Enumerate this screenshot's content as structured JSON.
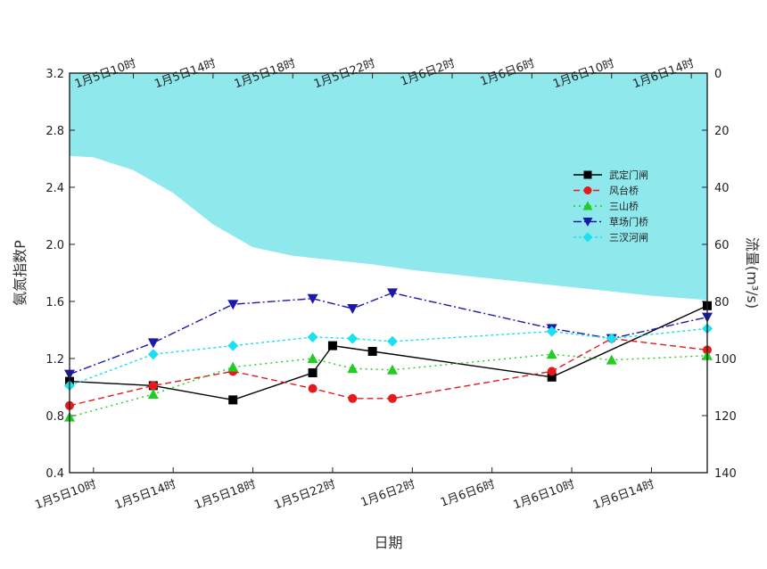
{
  "chart_data": {
    "type": "line",
    "xlabel": "日期",
    "ylabel_left": "氨氮指数P",
    "ylabel_right": "流量(m³/s)",
    "ylim_left": [
      0.4,
      3.2
    ],
    "yticks_left": [
      "0.4",
      "0.8",
      "1.2",
      "1.6",
      "2.0",
      "2.4",
      "2.8",
      "3.2"
    ],
    "ylim_right": [
      0,
      140
    ],
    "yticks_right": [
      "0",
      "20",
      "40",
      "60",
      "80",
      "100",
      "120",
      "140"
    ],
    "xlim_hours": [
      8.8,
      40.8
    ],
    "x_hours_axis_note": "hours from 0:00 on Jan 5",
    "xticks_bottom": [
      {
        "hour": 10,
        "label": "1月5日10时"
      },
      {
        "hour": 14,
        "label": "1月5日14时"
      },
      {
        "hour": 18,
        "label": "1月5日18时"
      },
      {
        "hour": 22,
        "label": "1月5日22时"
      },
      {
        "hour": 26,
        "label": "1月6日2时"
      },
      {
        "hour": 30,
        "label": "1月6日6时"
      },
      {
        "hour": 34,
        "label": "1月6日10时"
      },
      {
        "hour": 38,
        "label": "1月6日14时"
      }
    ],
    "xticks_top": [
      {
        "hour": 12,
        "label": "1月5日10时"
      },
      {
        "hour": 16,
        "label": "1月5日14时"
      },
      {
        "hour": 20,
        "label": "1月5日18时"
      },
      {
        "hour": 24,
        "label": "1月5日22时"
      },
      {
        "hour": 28,
        "label": "1月6日2时"
      },
      {
        "hour": 32,
        "label": "1月6日6时"
      },
      {
        "hour": 36,
        "label": "1月6日10时"
      },
      {
        "hour": 40,
        "label": "1月6日14时"
      }
    ],
    "flow": {
      "color": "#8ee8ec",
      "values": [
        {
          "hour": 8.8,
          "value": 29
        },
        {
          "hour": 10,
          "value": 29.5
        },
        {
          "hour": 12,
          "value": 34
        },
        {
          "hour": 14,
          "value": 42
        },
        {
          "hour": 16,
          "value": 53
        },
        {
          "hour": 18,
          "value": 61
        },
        {
          "hour": 20,
          "value": 64
        },
        {
          "hour": 22,
          "value": 65.5
        },
        {
          "hour": 24,
          "value": 67
        },
        {
          "hour": 26,
          "value": 69
        },
        {
          "hour": 28,
          "value": 70.5
        },
        {
          "hour": 30,
          "value": 72
        },
        {
          "hour": 32,
          "value": 73.5
        },
        {
          "hour": 34,
          "value": 75
        },
        {
          "hour": 36,
          "value": 76.5
        },
        {
          "hour": 38,
          "value": 78
        },
        {
          "hour": 40.8,
          "value": 79.5
        }
      ]
    },
    "legend_position": "right",
    "series": [
      {
        "name": "武定门闸",
        "color": "#000000",
        "marker": "square",
        "dash": "",
        "points": [
          [
            8.8,
            1.04
          ],
          [
            13,
            1.01
          ],
          [
            17,
            0.91
          ],
          [
            21,
            1.1
          ],
          [
            22,
            1.29
          ],
          [
            24,
            1.25
          ],
          [
            33,
            1.07
          ],
          [
            40.8,
            1.57
          ]
        ]
      },
      {
        "name": "风台桥",
        "color": "#e41a1c",
        "marker": "circle",
        "dash": "7,4",
        "points": [
          [
            8.8,
            0.87
          ],
          [
            13,
            1.01
          ],
          [
            17,
            1.11
          ],
          [
            21,
            0.99
          ],
          [
            23,
            0.92
          ],
          [
            25,
            0.92
          ],
          [
            33,
            1.11
          ],
          [
            36,
            1.34
          ],
          [
            40.8,
            1.26
          ]
        ]
      },
      {
        "name": "三山桥",
        "color": "#22cc22",
        "marker": "triangle-up",
        "dash": "2,4",
        "points": [
          [
            8.8,
            0.79
          ],
          [
            13,
            0.95
          ],
          [
            17,
            1.14
          ],
          [
            21,
            1.2
          ],
          [
            23,
            1.13
          ],
          [
            25,
            1.12
          ],
          [
            33,
            1.23
          ],
          [
            36,
            1.19
          ],
          [
            40.8,
            1.22
          ]
        ]
      },
      {
        "name": "草场门桥",
        "color": "#1a1aaa",
        "marker": "triangle-down",
        "dash": "9,3,2,3",
        "points": [
          [
            8.8,
            1.09
          ],
          [
            13,
            1.31
          ],
          [
            17,
            1.58
          ],
          [
            21,
            1.62
          ],
          [
            23,
            1.55
          ],
          [
            25,
            1.66
          ],
          [
            33,
            1.41
          ],
          [
            36,
            1.34
          ],
          [
            40.8,
            1.49
          ]
        ]
      },
      {
        "name": "三汊河闸",
        "color": "#1ae0f0",
        "marker": "diamond",
        "dash": "3,3",
        "points": [
          [
            8.8,
            1.01
          ],
          [
            13,
            1.23
          ],
          [
            17,
            1.29
          ],
          [
            21,
            1.35
          ],
          [
            23,
            1.34
          ],
          [
            25,
            1.32
          ],
          [
            33,
            1.39
          ],
          [
            36,
            1.34
          ],
          [
            40.8,
            1.41
          ]
        ]
      }
    ]
  }
}
